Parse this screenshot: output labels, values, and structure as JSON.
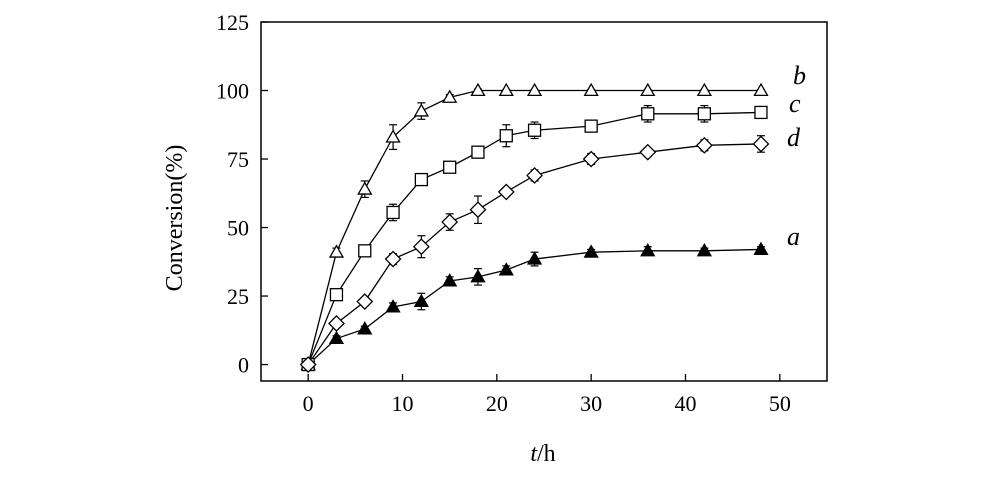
{
  "chart_data": {
    "type": "line",
    "xlabel_italic": "t",
    "xlabel_rest": "/h",
    "ylabel": "Conversion(%)",
    "xlim": [
      -5,
      55
    ],
    "ylim": [
      -6,
      125
    ],
    "xticks": [
      0,
      10,
      20,
      30,
      40,
      50
    ],
    "yticks": [
      0,
      25,
      50,
      75,
      100,
      125
    ],
    "grid": false,
    "legend": "inline labels at line ends",
    "series": [
      {
        "name": "a",
        "marker": "triangle-filled",
        "x": [
          0,
          3,
          6,
          9,
          12,
          15,
          18,
          21,
          24,
          30,
          36,
          42,
          48
        ],
        "y": [
          0,
          9.5,
          13,
          21,
          23,
          30.5,
          32,
          34.5,
          38.5,
          41,
          41.5,
          41.5,
          42
        ],
        "err": [
          0,
          1,
          1,
          1.5,
          3,
          1.5,
          3,
          1.5,
          2.5,
          1,
          1.5,
          1,
          1
        ]
      },
      {
        "name": "b",
        "marker": "triangle-open",
        "x": [
          0,
          3,
          6,
          9,
          12,
          15,
          18,
          21,
          24,
          30,
          36,
          42,
          48
        ],
        "y": [
          0,
          41,
          64,
          83,
          92.5,
          97.5,
          100,
          100,
          100,
          100,
          100,
          100,
          100
        ],
        "err": [
          0,
          1.5,
          3,
          4.5,
          3,
          1,
          0.5,
          0.3,
          0.3,
          0.3,
          0.3,
          0.3,
          0.3
        ]
      },
      {
        "name": "c",
        "marker": "square-open",
        "x": [
          0,
          3,
          6,
          9,
          12,
          15,
          18,
          21,
          24,
          30,
          36,
          42,
          48
        ],
        "y": [
          0,
          25.5,
          41.5,
          55.5,
          67.5,
          72,
          77.5,
          83.5,
          85.5,
          87,
          91.5,
          91.5,
          92
        ],
        "err": [
          0,
          1,
          1.5,
          3,
          2,
          2,
          1,
          4,
          3,
          2,
          3,
          3,
          2
        ]
      },
      {
        "name": "d",
        "marker": "diamond-open",
        "x": [
          0,
          3,
          6,
          9,
          12,
          15,
          18,
          21,
          24,
          30,
          36,
          42,
          48
        ],
        "y": [
          0,
          15,
          23,
          38.5,
          43,
          52,
          56.5,
          63,
          69,
          75,
          77.5,
          80,
          80.5
        ],
        "err": [
          0,
          1.5,
          1,
          2,
          4,
          3,
          5,
          1.5,
          2,
          2,
          1.5,
          2,
          3
        ]
      }
    ]
  }
}
